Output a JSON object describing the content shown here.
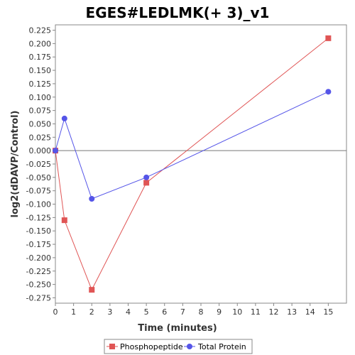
{
  "chart_data": {
    "type": "line",
    "title": "EGES#LEDLMK(+ 3)_v1",
    "xlabel": "Time (minutes)",
    "ylabel": "log2(dDAVP/Control)",
    "xlim": [
      0,
      16
    ],
    "ylim": [
      -0.285,
      0.235
    ],
    "x_ticks": [
      "0",
      "1",
      "2",
      "3",
      "4",
      "5",
      "6",
      "7",
      "8",
      "9",
      "10",
      "11",
      "12",
      "13",
      "14",
      "15"
    ],
    "y_ticks": [
      "0.225",
      "0.200",
      "0.175",
      "0.150",
      "0.125",
      "0.100",
      "0.075",
      "0.050",
      "0.025",
      "0.000",
      "-0.025",
      "-0.050",
      "-0.075",
      "-0.100",
      "-0.125",
      "-0.150",
      "-0.175",
      "-0.200",
      "-0.225",
      "-0.250",
      "-0.275"
    ],
    "zero_line": true,
    "grid": false,
    "legend_position": "bottom",
    "series": [
      {
        "name": "Phosphopeptide",
        "color": "#e05555",
        "marker": "square",
        "x": [
          0,
          0.5,
          2,
          5,
          15
        ],
        "y": [
          0.0,
          -0.13,
          -0.26,
          -0.06,
          0.21
        ]
      },
      {
        "name": "Total Protein",
        "color": "#5555e8",
        "marker": "circle",
        "x": [
          0,
          0.5,
          2,
          5,
          15
        ],
        "y": [
          0.0,
          0.06,
          -0.09,
          -0.05,
          0.11
        ]
      }
    ]
  }
}
